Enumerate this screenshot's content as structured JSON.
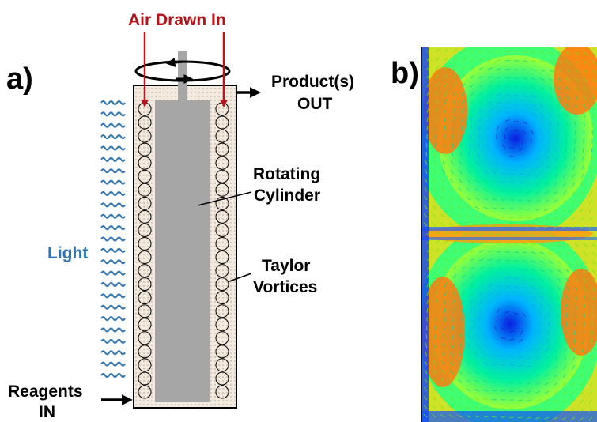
{
  "panel_a": {
    "label": "a)",
    "labels": {
      "air_in": "Air Drawn In",
      "product_line1": "Product(s)",
      "product_line2": "OUT",
      "rotating_line1": "Rotating",
      "rotating_line2": "Cylinder",
      "taylor_line1": "Taylor",
      "taylor_line2": "Vortices",
      "light": "Light",
      "reagents_line1": "Reagents",
      "reagents_line2": "IN"
    },
    "colors": {
      "air_arrow": "#b5141b",
      "light_wave": "#2e75b6",
      "light_text": "#2e75b6",
      "cylinder": "#a6a6a6",
      "gap_fill": "#f2e9df"
    },
    "vortex_rings_per_side": 22,
    "light_wave_count": 25
  },
  "panel_b": {
    "label": "b)",
    "visualization": "vector-field",
    "colormap": [
      "#0000ff",
      "#00c8ff",
      "#00ff80",
      "#c8ff00",
      "#ff8000"
    ]
  }
}
